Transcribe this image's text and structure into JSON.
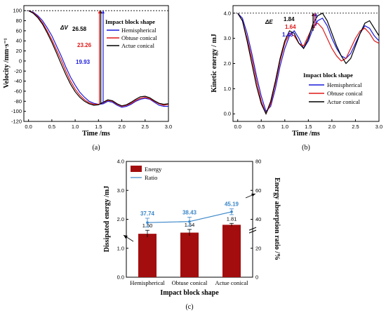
{
  "colors": {
    "hemispherical": "#1a1adb",
    "obtuse": "#e01818",
    "actue": "#000000",
    "bar": "#a30d0d",
    "ratio": "#3a86c8"
  },
  "chart_data": [
    {
      "id": "a",
      "type": "line",
      "caption": "(a)",
      "xlabel": "Time /ms",
      "ylabel": "Velocity /mm·s⁻¹",
      "xlim": [
        -0.1,
        3.0
      ],
      "ylim": [
        -120,
        110
      ],
      "xticks": [
        "0.0",
        "0.5",
        "1.0",
        "1.5",
        "2.0",
        "2.5",
        "3.0"
      ],
      "yticks": [
        "100",
        "80",
        "60",
        "40",
        "20",
        "0",
        "-20",
        "-40",
        "-60",
        "-80",
        "-100",
        "-120"
      ],
      "legend_title": "Impact block shape",
      "legend_position": "top-right",
      "series": [
        {
          "name": "Hemispherical",
          "color_key": "hemispherical",
          "x": [
            0,
            0.1,
            0.2,
            0.3,
            0.4,
            0.5,
            0.6,
            0.7,
            0.8,
            0.9,
            1.0,
            1.1,
            1.2,
            1.3,
            1.4,
            1.5,
            1.6,
            1.7,
            1.8,
            1.9,
            2.0,
            2.1,
            2.2,
            2.3,
            2.4,
            2.5,
            2.6,
            2.7,
            2.8,
            2.9,
            3.0
          ],
          "y": [
            100,
            97,
            90,
            80,
            66,
            50,
            30,
            10,
            -12,
            -32,
            -48,
            -62,
            -72,
            -80,
            -84,
            -86,
            -85,
            -80,
            -82,
            -88,
            -92,
            -90,
            -86,
            -80,
            -76,
            -74,
            -76,
            -82,
            -88,
            -90,
            -90
          ]
        },
        {
          "name": "Obtuse conical",
          "color_key": "obtuse",
          "x": [
            0,
            0.1,
            0.2,
            0.3,
            0.4,
            0.5,
            0.6,
            0.7,
            0.8,
            0.9,
            1.0,
            1.1,
            1.2,
            1.3,
            1.4,
            1.5,
            1.6,
            1.7,
            1.8,
            1.9,
            2.0,
            2.1,
            2.2,
            2.3,
            2.4,
            2.5,
            2.6,
            2.7,
            2.8,
            2.9,
            3.0
          ],
          "y": [
            100,
            96,
            88,
            76,
            60,
            42,
            22,
            2,
            -20,
            -40,
            -56,
            -68,
            -77,
            -83,
            -86,
            -86,
            -83,
            -78,
            -80,
            -86,
            -90,
            -88,
            -84,
            -78,
            -74,
            -72,
            -75,
            -80,
            -85,
            -88,
            -86
          ]
        },
        {
          "name": "Actue conical",
          "color_key": "actue",
          "x": [
            0,
            0.1,
            0.2,
            0.3,
            0.4,
            0.5,
            0.6,
            0.7,
            0.8,
            0.9,
            1.0,
            1.1,
            1.2,
            1.3,
            1.4,
            1.5,
            1.6,
            1.7,
            1.8,
            1.9,
            2.0,
            2.1,
            2.2,
            2.3,
            2.4,
            2.5,
            2.6,
            2.7,
            2.8,
            2.9,
            3.0
          ],
          "y": [
            100,
            95,
            86,
            73,
            56,
            37,
            16,
            -6,
            -27,
            -46,
            -61,
            -72,
            -80,
            -85,
            -88,
            -87,
            -82,
            -77,
            -79,
            -85,
            -89,
            -87,
            -82,
            -76,
            -71,
            -70,
            -73,
            -79,
            -84,
            -86,
            -85
          ]
        }
      ],
      "annotation": {
        "symbol": "ΔV",
        "labels": [
          {
            "text": "26.58",
            "color_key": "actue",
            "x": 1.55,
            "y_from": 100,
            "y_to": -84
          },
          {
            "text": "23.26",
            "color_key": "obtuse",
            "x": 1.52,
            "y_from": 100,
            "y_to": -84
          },
          {
            "text": "19.93",
            "color_key": "hemispherical",
            "x": 1.6,
            "y_from": 100,
            "y_to": -84
          }
        ]
      }
    },
    {
      "id": "b",
      "type": "line",
      "caption": "(b)",
      "xlabel": "Time /ms",
      "ylabel": "Kinetic energy / mJ",
      "xlim": [
        -0.1,
        3.0
      ],
      "ylim": [
        -0.3,
        4.3
      ],
      "xticks": [
        "0.0",
        "0.5",
        "1.0",
        "1.5",
        "2.0",
        "2.5",
        "3.0"
      ],
      "yticks": [
        "0.0",
        "1.0",
        "2.0",
        "3.0",
        "4.0"
      ],
      "legend_title": "Impact block shape",
      "legend_position": "bottom-right",
      "series": [
        {
          "name": "Hemispherical",
          "color_key": "hemispherical",
          "x": [
            0,
            0.1,
            0.2,
            0.3,
            0.4,
            0.5,
            0.6,
            0.7,
            0.8,
            0.9,
            1.0,
            1.1,
            1.2,
            1.3,
            1.4,
            1.5,
            1.6,
            1.7,
            1.8,
            1.9,
            2.0,
            2.1,
            2.2,
            2.3,
            2.4,
            2.5,
            2.6,
            2.7,
            2.8,
            2.9,
            3.0
          ],
          "y": [
            4.0,
            3.8,
            3.2,
            2.4,
            1.5,
            0.7,
            0.1,
            0.3,
            1.0,
            1.9,
            2.6,
            3.1,
            3.3,
            3.0,
            2.6,
            2.9,
            3.4,
            3.7,
            3.8,
            3.5,
            3.0,
            2.6,
            2.3,
            2.2,
            2.4,
            2.8,
            3.2,
            3.5,
            3.4,
            3.1,
            2.9
          ]
        },
        {
          "name": "Obtuse conical",
          "color_key": "obtuse",
          "x": [
            0,
            0.1,
            0.2,
            0.3,
            0.4,
            0.5,
            0.6,
            0.7,
            0.8,
            0.9,
            1.0,
            1.1,
            1.2,
            1.3,
            1.4,
            1.5,
            1.6,
            1.7,
            1.8,
            1.9,
            2.0,
            2.1,
            2.2,
            2.3,
            2.4,
            2.5,
            2.6,
            2.7,
            2.8,
            2.9,
            3.0
          ],
          "y": [
            4.0,
            3.7,
            3.0,
            2.2,
            1.3,
            0.5,
            0.0,
            0.4,
            1.2,
            2.1,
            2.8,
            3.2,
            3.1,
            2.8,
            2.7,
            3.1,
            3.5,
            3.6,
            3.4,
            3.0,
            2.6,
            2.3,
            2.1,
            2.2,
            2.6,
            3.0,
            3.3,
            3.4,
            3.2,
            2.9,
            2.8
          ]
        },
        {
          "name": "Actue conical",
          "color_key": "actue",
          "x": [
            0,
            0.1,
            0.2,
            0.3,
            0.4,
            0.5,
            0.6,
            0.7,
            0.8,
            0.9,
            1.0,
            1.1,
            1.2,
            1.3,
            1.4,
            1.5,
            1.6,
            1.7,
            1.8,
            1.9,
            2.0,
            2.1,
            2.2,
            2.3,
            2.4,
            2.5,
            2.6,
            2.7,
            2.8,
            2.9,
            3.0
          ],
          "y": [
            4.0,
            3.7,
            2.9,
            2.0,
            1.1,
            0.4,
            0.0,
            0.5,
            1.3,
            2.2,
            2.9,
            3.3,
            3.2,
            2.8,
            2.6,
            3.0,
            3.6,
            3.9,
            4.0,
            3.7,
            3.2,
            2.7,
            2.3,
            2.0,
            2.2,
            2.7,
            3.2,
            3.6,
            3.7,
            3.4,
            3.1
          ]
        }
      ],
      "annotation": {
        "symbol": "ΔE",
        "labels": [
          {
            "text": "1.84",
            "color_key": "actue",
            "x": 1.6,
            "y_from": 4.0,
            "y_to": 3.3
          },
          {
            "text": "1.64",
            "color_key": "obtuse",
            "x": 1.63,
            "y_from": 4.0,
            "y_to": 3.4
          },
          {
            "text": "1.43",
            "color_key": "hemispherical",
            "x": 1.66,
            "y_from": 4.0,
            "y_to": 3.5
          }
        ]
      }
    },
    {
      "id": "c",
      "type": "bar",
      "caption": "(c)",
      "categories": [
        "Hemispherical",
        "Obtuse  conical",
        "Actue  conical"
      ],
      "xlabel": "Impact block shape",
      "ylabel": "Dissipated energy /mJ",
      "y2label": "Energy absorption ratio /%",
      "ylim": [
        0,
        4.0
      ],
      "y2lim": [
        0,
        80
      ],
      "yticks": [
        "0.0",
        "1.0",
        "2.0",
        "3.0",
        "4.0"
      ],
      "y2ticks": [
        "0",
        "20",
        "40",
        "60",
        "80"
      ],
      "series": [
        {
          "name": "Energy",
          "color_key": "bar",
          "values": [
            1.5,
            1.54,
            1.81
          ],
          "errors": [
            0.12,
            0.11,
            0.05
          ],
          "labels": [
            "1.50",
            "1.54",
            "1.81"
          ]
        },
        {
          "name": "Ratio",
          "color_key": "ratio",
          "values": [
            37.74,
            38.43,
            45.19
          ],
          "errors": [
            3,
            3,
            2
          ],
          "labels": [
            "37.74",
            "38.43",
            "45.19"
          ]
        }
      ],
      "legend_position": "top-left"
    }
  ]
}
